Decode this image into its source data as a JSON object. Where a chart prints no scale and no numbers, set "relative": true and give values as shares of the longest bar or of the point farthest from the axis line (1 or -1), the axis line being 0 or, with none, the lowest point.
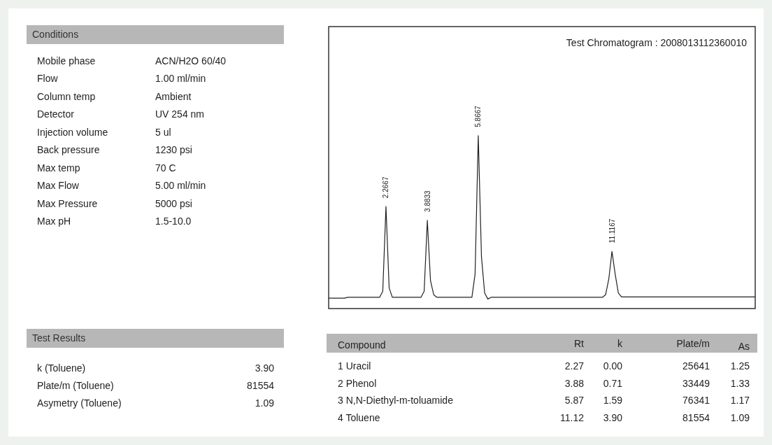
{
  "chart_data": [
    {
      "type": "other",
      "title": "Conditions",
      "categories": [
        "Mobile phase",
        "Flow",
        "Column temp",
        "Detector",
        "Injection volume",
        "Back pressure",
        "Max temp",
        "Max Flow",
        "Max Pressure",
        "Max pH"
      ],
      "value_labels": [
        "ACN/H2O 60/40",
        "1.00 ml/min",
        "Ambient",
        "UV 254 nm",
        "5 ul",
        "1230 psi",
        "70 C",
        "5.00 ml/min",
        "5000 psi",
        "1.5-10.0"
      ]
    },
    {
      "type": "line",
      "title": "Test Chromatogram : 2008013112360010",
      "relative": true,
      "color": "#222222",
      "categories": [
        null,
        null,
        null,
        null,
        null,
        null,
        null,
        null,
        null,
        null,
        null,
        null,
        null,
        null,
        null,
        null,
        null,
        null,
        null,
        null,
        null,
        null,
        null,
        null,
        null,
        null,
        null,
        null,
        null,
        null,
        null,
        null,
        null,
        null,
        null,
        null,
        null,
        null,
        null,
        null,
        null,
        null,
        null,
        null,
        null,
        null,
        null,
        null,
        null,
        null,
        null,
        null,
        null,
        null,
        null,
        null,
        null,
        null,
        null,
        null,
        null,
        null,
        null,
        null,
        null,
        null,
        null,
        null,
        null,
        null,
        null,
        null,
        null,
        null,
        null,
        null,
        null,
        null,
        null,
        null,
        null,
        null,
        null,
        null,
        null,
        null,
        null,
        null,
        null,
        null,
        null,
        null,
        null,
        null,
        null,
        null,
        null,
        null,
        null,
        null,
        null,
        null,
        null,
        null,
        null,
        null,
        null,
        null,
        null,
        null,
        null,
        null,
        null,
        null,
        null,
        null,
        null,
        null,
        null,
        null,
        null,
        null,
        null,
        null,
        null,
        null,
        null,
        null,
        null,
        null,
        null,
        null,
        null,
        null,
        null
      ],
      "values": [
        0.06,
        0.06,
        0.06,
        0.06,
        0.06,
        0.06,
        0.065,
        0.065,
        0.065,
        0.065,
        0.065,
        0.065,
        0.065,
        0.065,
        0.065,
        0.065,
        0.065,
        0.1,
        0.59,
        0.12,
        0.065,
        0.065,
        0.065,
        0.065,
        0.065,
        0.065,
        0.065,
        0.065,
        0.065,
        0.065,
        0.1,
        0.51,
        0.16,
        0.08,
        0.065,
        0.065,
        0.065,
        0.065,
        0.065,
        0.065,
        0.065,
        0.065,
        0.065,
        0.065,
        0.065,
        0.065,
        0.2,
        1,
        0.3,
        0.09,
        0.055,
        0.065,
        0.065,
        0.065,
        0.065,
        0.065,
        0.065,
        0.065,
        0.065,
        0.065,
        0.065,
        0.065,
        0.065,
        0.065,
        0.065,
        0.065,
        0.065,
        0.065,
        0.065,
        0.065,
        0.065,
        0.065,
        0.065,
        0.065,
        0.065,
        0.065,
        0.065,
        0.065,
        0.065,
        0.065,
        0.065,
        0.065,
        0.065,
        0.065,
        0.065,
        0.065,
        0.065,
        0.08,
        0.17,
        0.33,
        0.2,
        0.09,
        0.067,
        0.067,
        0.067,
        0.067,
        0.067,
        0.067,
        0.067,
        0.067,
        0.067,
        0.067,
        0.067,
        0.067,
        0.067,
        0.067,
        0.067,
        0.067,
        0.067,
        0.067,
        0.067,
        0.067,
        0.067,
        0.067,
        0.067,
        0.067,
        0.067,
        0.067,
        0.067,
        0.067,
        0.067,
        0.067,
        0.067,
        0.067,
        0.067,
        0.067,
        0.067,
        0.067,
        0.067,
        0.067,
        0.067,
        0.067,
        0.067,
        0.067,
        0.067
      ],
      "annotations": [
        "2.2667",
        "3.8833",
        "5.8667",
        "11.1167"
      ]
    },
    {
      "type": "other",
      "title": "Test Results",
      "categories": [
        "k (Toluene)",
        "Plate/m (Toluene)",
        "Asymetry (Toluene)"
      ],
      "value_labels": [
        "3.90",
        "81554",
        "1.09"
      ]
    },
    {
      "type": "other",
      "annotations": [
        "Compound",
        "Rt",
        "k",
        "Plate/m",
        "As"
      ],
      "categories": [
        "1 Uracil",
        "2 Phenol",
        "3 N,N-Diethyl-m-toluamide",
        "4 Toluene"
      ],
      "cell_labels": [
        [
          "2.27",
          "0.00",
          "25641",
          "1.25"
        ],
        [
          "3.88",
          "0.71",
          "33449",
          "1.33"
        ],
        [
          "5.87",
          "1.59",
          "76341",
          "1.17"
        ],
        [
          "11.12",
          "3.90",
          "81554",
          "1.09"
        ]
      ]
    }
  ]
}
